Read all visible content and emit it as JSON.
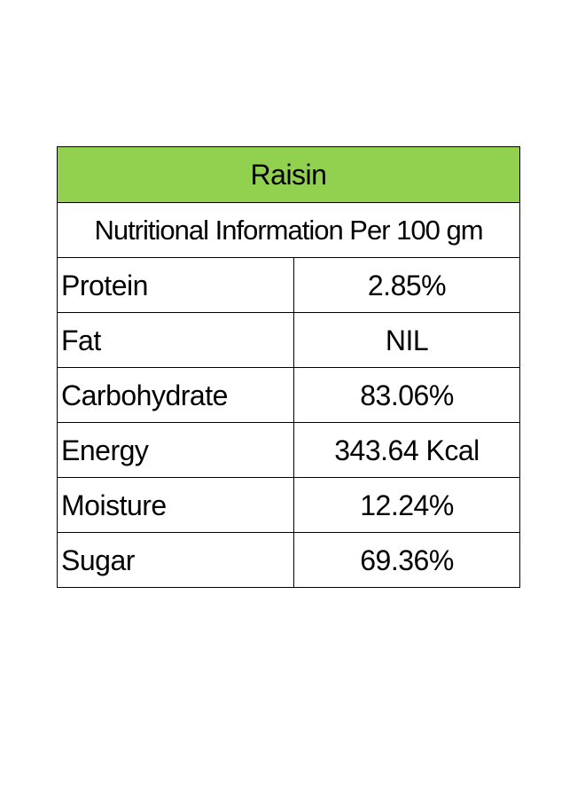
{
  "table": {
    "title": "Raisin",
    "subtitle": "Nutritional Information Per 100 gm",
    "header_color": "#92d050",
    "rows": [
      {
        "label": "Protein",
        "value": "2.85%"
      },
      {
        "label": "Fat",
        "value": "NIL"
      },
      {
        "label": "Carbohydrate",
        "value": "83.06%"
      },
      {
        "label": "Energy",
        "value": "343.64 Kcal"
      },
      {
        "label": "Moisture",
        "value": "12.24%"
      },
      {
        "label": "Sugar",
        "value": "69.36%"
      }
    ]
  }
}
